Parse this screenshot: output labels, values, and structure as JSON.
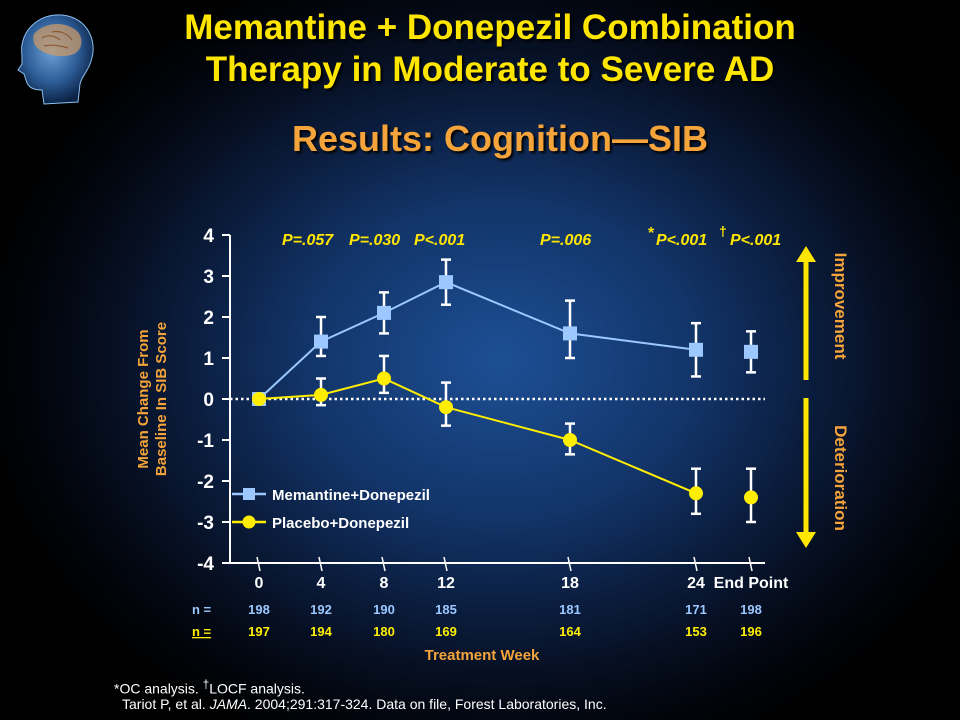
{
  "titles": {
    "line1": "Memantine + Donepezil Combination",
    "line2": "Therapy in Moderate to Severe AD",
    "subtitle": "Results: Cognition—SIB"
  },
  "colors": {
    "title": "#ffe600",
    "subtitle": "#f4a43a",
    "memantine": "#9cc8ff",
    "placebo": "#ffee00",
    "arrow": "#ffe600"
  },
  "chart_data": {
    "type": "line",
    "ylabel_line1": "Mean Change From",
    "ylabel_line2": "Baseline In SIB Score",
    "xlabel": "Treatment Week",
    "ylim": [
      -4,
      4
    ],
    "yticks": [
      "4",
      "3",
      "2",
      "1",
      "0",
      "-1",
      "-2",
      "-3",
      "-4"
    ],
    "categories": [
      "0",
      "4",
      "8",
      "12",
      "18",
      "24",
      "End Point"
    ],
    "series": [
      {
        "name": "Memantine+Donepezil",
        "values": [
          0,
          1.4,
          2.1,
          2.85,
          1.6,
          1.2,
          1.15
        ],
        "err_low": [
          0,
          1.05,
          1.6,
          2.3,
          1.0,
          0.55,
          0.65
        ],
        "err_high": [
          0,
          2.0,
          2.6,
          3.4,
          2.4,
          1.85,
          1.65
        ]
      },
      {
        "name": "Placebo+Donepezil",
        "values": [
          0,
          0.1,
          0.5,
          -0.2,
          -1.0,
          -2.3,
          -2.4
        ],
        "err_low": [
          0,
          -0.15,
          0.15,
          -0.65,
          -1.35,
          -2.8,
          -3.0
        ],
        "err_high": [
          0,
          0.5,
          1.05,
          0.4,
          -0.6,
          -1.7,
          -1.7
        ]
      }
    ],
    "annotations": {
      "p1": "P=.057",
      "p2": "P=.030",
      "p3": "P<.001",
      "p4": "P=.006",
      "p5_mark": "*",
      "p5": "P<.001",
      "p6_mark": "†",
      "p6": "P<.001"
    },
    "n_label": "n =",
    "n_memantine": [
      "198",
      "192",
      "190",
      "185",
      "181",
      "171",
      "198"
    ],
    "n_placebo": [
      "197",
      "194",
      "180",
      "169",
      "164",
      "153",
      "196"
    ],
    "improvement": "Improvement",
    "deterioration": "Deterioration",
    "grid": false,
    "legend": "bottom-left"
  },
  "footnotes": {
    "line1_a": "*OC analysis. ",
    "line1_mark": "†",
    "line1_b": "LOCF analysis.",
    "line2_a": "Tariot P, et al. ",
    "line2_journal": "JAMA",
    "line2_b": ". 2004;291:317-324.  Data on file, Forest Laboratories, Inc."
  }
}
